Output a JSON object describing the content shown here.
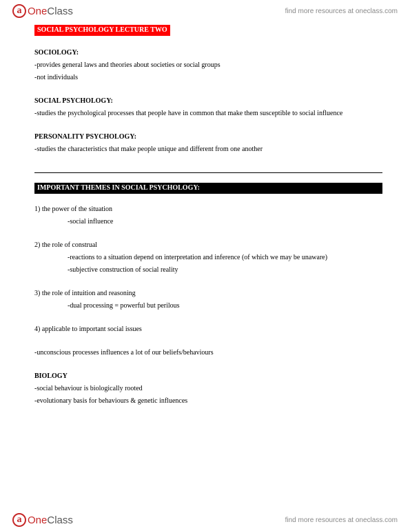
{
  "brand": {
    "icon_letter": "a",
    "name_html_one": "One",
    "name_html_class": "Class",
    "tagline": "find more resources at oneclass.com"
  },
  "title_banner": "SOCIAL PSYCHOLOGY LECTURE TWO",
  "sociology": {
    "heading": "SOCIOLOGY:",
    "lines": [
      "-provides general laws and theories about societies or social groups",
      "-not individuals"
    ]
  },
  "social_psych": {
    "heading": "SOCIAL PSYCHOLOGY:",
    "lines": [
      "-studies the psychological processes that people have in common that make them susceptible to social influence"
    ]
  },
  "personality": {
    "heading": "PERSONALITY PSYCHOLOGY:",
    "lines": [
      "-studies the characteristics that make people unique and different from one another"
    ]
  },
  "themes_banner": "IMPORTANT THEMES IN SOCIAL PSYCHOLOGY:",
  "theme1": {
    "num": "1) the power of the situation",
    "subs": [
      "-social influence"
    ]
  },
  "theme2": {
    "num": "2) the role of construal",
    "subs": [
      "-reactions to a situation depend on interpretation and inference (of which we may be unaware)",
      "-subjective construction of social reality"
    ]
  },
  "theme3": {
    "num": "3) the role of intuition and reasoning",
    "subs": [
      "-dual processing = powerful but perilous"
    ]
  },
  "theme4": {
    "num": "4) applicable to important social issues"
  },
  "unconscious": "-unconscious processes influences a lot of our beliefs/behaviours",
  "biology": {
    "heading": "BIOLOGY",
    "lines": [
      "-social behaviour is biologically rooted",
      "-evolutionary basis for behaviours & genetic influences"
    ]
  }
}
